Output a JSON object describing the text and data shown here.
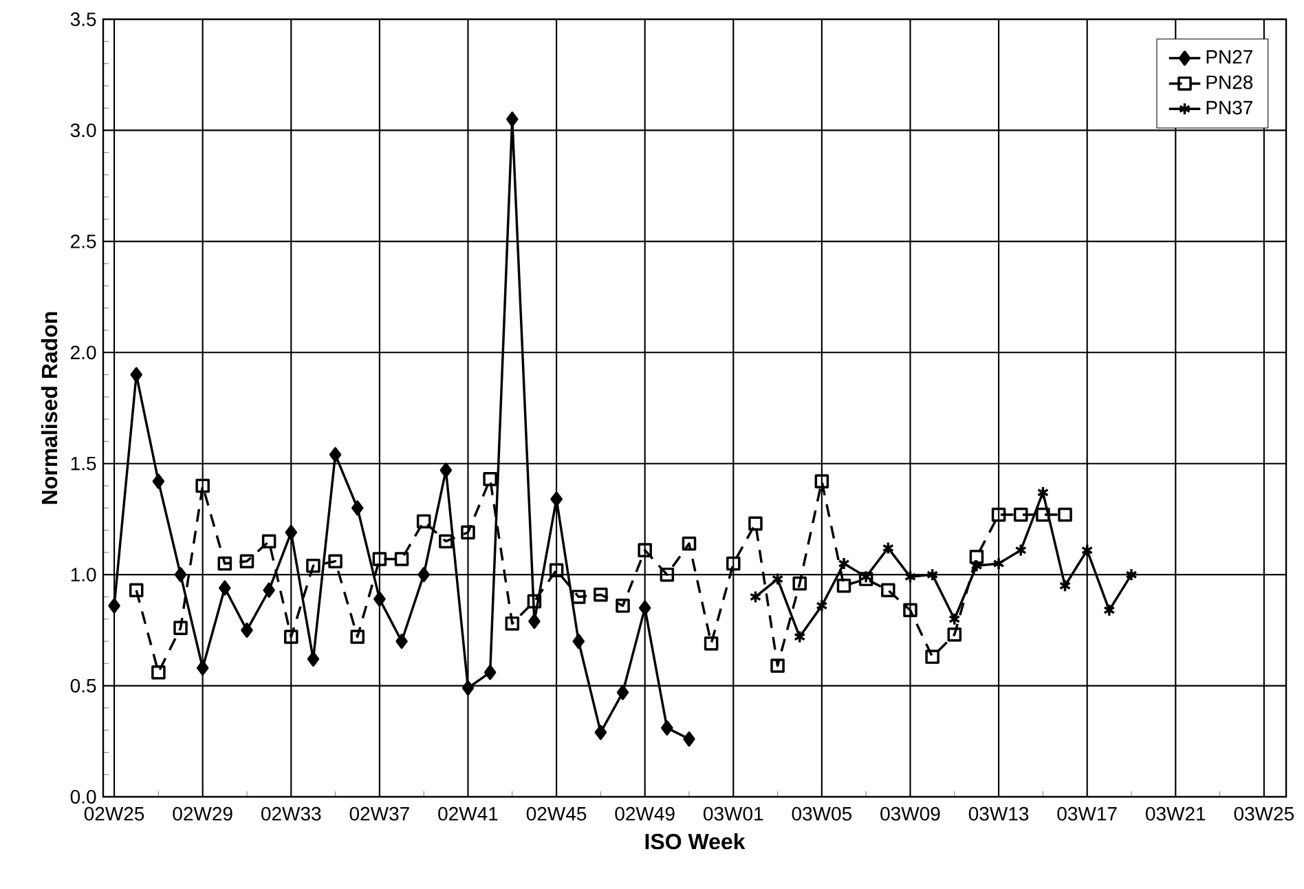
{
  "chart_data": {
    "type": "line",
    "xlabel": "ISO Week",
    "ylabel": "Normalised Radon",
    "categories": [
      "02W25",
      null,
      null,
      null,
      "02W29",
      null,
      null,
      null,
      "02W33",
      null,
      null,
      null,
      "02W37",
      null,
      null,
      null,
      "02W41",
      null,
      null,
      null,
      "02W45",
      null,
      null,
      null,
      "02W49",
      null,
      null,
      null,
      "03W01",
      null,
      null,
      null,
      "03W05",
      null,
      null,
      null,
      "03W09",
      null,
      null,
      null,
      "03W13",
      null,
      null,
      null,
      "03W17",
      null,
      null,
      null,
      "03W21",
      null,
      null,
      null,
      "03W25"
    ],
    "series": [
      {
        "name": "PN27",
        "color": "#000000",
        "marker": "diamond",
        "line_style": "solid",
        "values": [
          0.86,
          1.9,
          1.42,
          1.0,
          0.58,
          0.94,
          0.75,
          0.93,
          1.19,
          0.62,
          1.54,
          1.3,
          0.89,
          0.7,
          1.0,
          1.47,
          0.49,
          0.56,
          3.05,
          0.79,
          1.34,
          0.7,
          0.29,
          0.47,
          0.85,
          0.31,
          0.26,
          null,
          null,
          null,
          null,
          null,
          null,
          null,
          null,
          null,
          null,
          null,
          null,
          null,
          null,
          null,
          null,
          null,
          null,
          null,
          null,
          null,
          null,
          null,
          null,
          null,
          null
        ]
      },
      {
        "name": "PN28",
        "color": "#000000",
        "marker": "square",
        "line_style": "dashed",
        "values": [
          null,
          0.93,
          0.56,
          0.76,
          1.4,
          1.05,
          1.06,
          1.15,
          0.72,
          1.04,
          1.06,
          0.72,
          1.07,
          1.07,
          1.24,
          1.15,
          1.19,
          1.43,
          0.78,
          0.88,
          1.02,
          0.9,
          0.91,
          0.86,
          1.11,
          1.0,
          1.14,
          0.69,
          1.05,
          1.23,
          0.59,
          0.96,
          1.42,
          0.95,
          0.98,
          0.93,
          0.84,
          0.63,
          0.73,
          1.08,
          1.27,
          1.27,
          1.27,
          1.27,
          null,
          null,
          null,
          null,
          null,
          null,
          null,
          null,
          null
        ]
      },
      {
        "name": "PN37",
        "color": "#000000",
        "marker": "cross",
        "line_style": "solid",
        "values": [
          null,
          null,
          null,
          null,
          null,
          null,
          null,
          null,
          null,
          null,
          null,
          null,
          null,
          null,
          null,
          null,
          null,
          null,
          null,
          null,
          null,
          null,
          null,
          null,
          null,
          null,
          null,
          null,
          null,
          0.9,
          0.98,
          0.72,
          0.86,
          1.05,
          0.99,
          1.12,
          0.99,
          1.0,
          0.8,
          1.04,
          1.05,
          1.11,
          1.37,
          0.95,
          1.11,
          0.84,
          1.0,
          null,
          null,
          null,
          null,
          null,
          null
        ]
      }
    ],
    "ylim": [
      0,
      3.5
    ],
    "yticks": [
      {
        "value": 0,
        "label": "0.0"
      },
      {
        "value": 0.5,
        "label": "0.5"
      },
      {
        "value": 1,
        "label": "1.0"
      },
      {
        "value": 1.5,
        "label": "1.5"
      },
      {
        "value": 2,
        "label": "2.0"
      },
      {
        "value": 2.5,
        "label": "2.5"
      },
      {
        "value": 3,
        "label": "3.0"
      },
      {
        "value": 3.5,
        "label": "3.5"
      }
    ],
    "grid": true,
    "legend": "top right"
  }
}
